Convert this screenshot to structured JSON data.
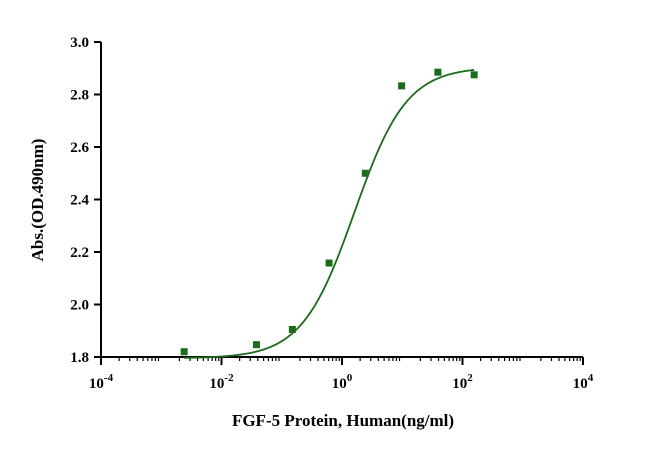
{
  "chart_data": {
    "type": "scatter",
    "xlabel": "FGF-5 Protein, Human(ng/ml)",
    "ylabel": "Abs.(OD.490nm)",
    "x_scale": "log",
    "xlim": [
      0.0001,
      10000
    ],
    "ylim": [
      1.8,
      3.0
    ],
    "x_ticks": [
      {
        "value": 0.0001,
        "base": "10",
        "exp": "-4"
      },
      {
        "value": 0.01,
        "base": "10",
        "exp": "-2"
      },
      {
        "value": 1,
        "base": "10",
        "exp": "0"
      },
      {
        "value": 100,
        "base": "10",
        "exp": "2"
      },
      {
        "value": 10000,
        "base": "10",
        "exp": "4"
      }
    ],
    "y_ticks": [
      {
        "value": 1.8,
        "label": "1.8"
      },
      {
        "value": 2.0,
        "label": "2.0"
      },
      {
        "value": 2.2,
        "label": "2.2"
      },
      {
        "value": 2.4,
        "label": "2.4"
      },
      {
        "value": 2.6,
        "label": "2.6"
      },
      {
        "value": 2.8,
        "label": "2.8"
      },
      {
        "value": 3.0,
        "label": "3.0"
      }
    ],
    "grid": false,
    "series": [
      {
        "marker": "square",
        "color": "#1a6b1a",
        "points": [
          {
            "x": 0.0024,
            "y": 1.82
          },
          {
            "x": 0.038,
            "y": 1.847
          },
          {
            "x": 0.15,
            "y": 1.905
          },
          {
            "x": 0.61,
            "y": 2.158
          },
          {
            "x": 2.44,
            "y": 2.5
          },
          {
            "x": 9.77,
            "y": 2.833
          },
          {
            "x": 39.06,
            "y": 2.885
          },
          {
            "x": 156.25,
            "y": 2.875
          }
        ]
      }
    ],
    "fit_curve": {
      "model": "4PL",
      "bottom": 1.795,
      "top": 2.905,
      "ec50": 1.6,
      "hill": 1.0,
      "x_range": [
        0.0024,
        156.25
      ],
      "color": "#1a6b1a"
    }
  }
}
